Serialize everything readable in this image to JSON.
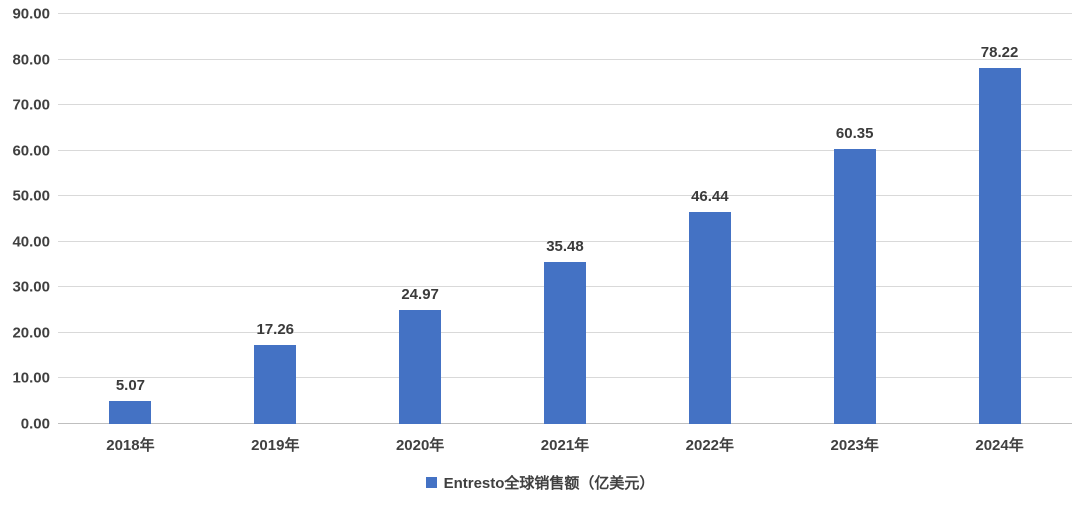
{
  "chart_data": {
    "type": "bar",
    "categories": [
      "2018年",
      "2019年",
      "2020年",
      "2021年",
      "2022年",
      "2023年",
      "2024年"
    ],
    "values": [
      5.07,
      17.26,
      24.97,
      35.48,
      46.44,
      60.35,
      78.22
    ],
    "value_labels": [
      "5.07",
      "17.26",
      "24.97",
      "35.48",
      "46.44",
      "60.35",
      "78.22"
    ],
    "title": "",
    "xlabel": "",
    "ylabel": "",
    "ylim": [
      0,
      90
    ],
    "y_tick_interval": 10,
    "y_tick_labels": [
      "0.00",
      "10.00",
      "20.00",
      "30.00",
      "40.00",
      "50.00",
      "60.00",
      "70.00",
      "80.00",
      "90.00"
    ],
    "grid": true,
    "legend": {
      "label": "Entresto全球销售额（亿美元）",
      "position": "bottom"
    },
    "colors": {
      "bar": "#4472c4",
      "gridline": "#d9d9d9",
      "axis_line": "#bfbfbf",
      "text": "#404040",
      "background": "#ffffff"
    }
  }
}
